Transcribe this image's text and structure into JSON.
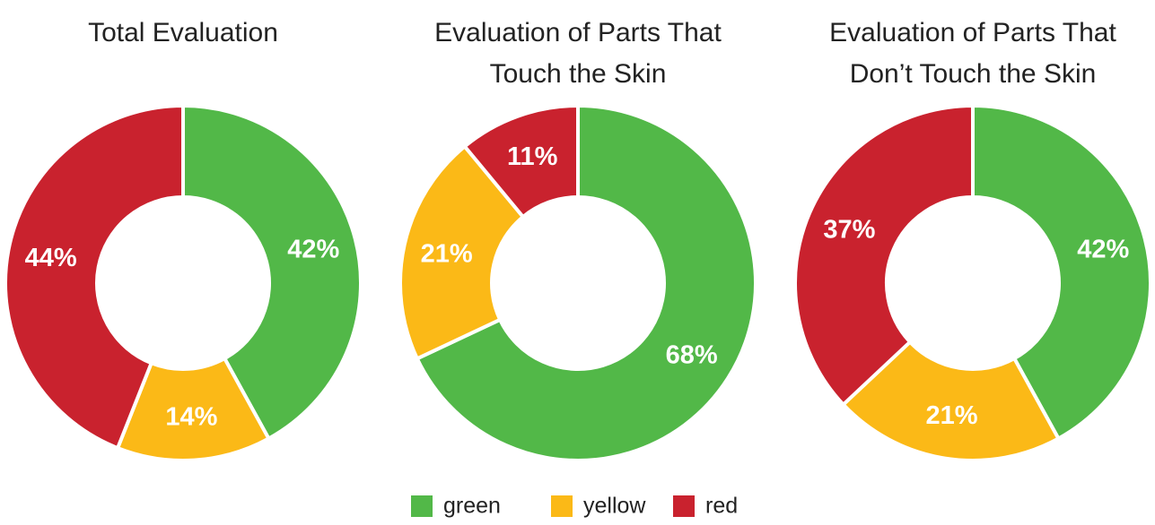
{
  "colors": {
    "green": "#52b848",
    "yellow": "#fbb917",
    "red": "#c9222e"
  },
  "chart_data": [
    {
      "type": "pie",
      "title": [
        "Total Evaluation"
      ],
      "slices": [
        {
          "category": "green",
          "value": 42,
          "label": "42%"
        },
        {
          "category": "yellow",
          "value": 14,
          "label": "14%"
        },
        {
          "category": "red",
          "value": 44,
          "label": "44%"
        }
      ]
    },
    {
      "type": "pie",
      "title": [
        "Evaluation of Parts That",
        "Touch the Skin"
      ],
      "slices": [
        {
          "category": "green",
          "value": 68,
          "label": "68%"
        },
        {
          "category": "yellow",
          "value": 21,
          "label": "21%"
        },
        {
          "category": "red",
          "value": 11,
          "label": "11%"
        }
      ]
    },
    {
      "type": "pie",
      "title": [
        "Evaluation of Parts That",
        "Don’t Touch the Skin"
      ],
      "slices": [
        {
          "category": "green",
          "value": 42,
          "label": "42%"
        },
        {
          "category": "yellow",
          "value": 21,
          "label": "21%"
        },
        {
          "category": "red",
          "value": 37,
          "label": "37%"
        }
      ]
    }
  ],
  "legend": {
    "placement": "bottom-center",
    "items": [
      {
        "key": "green",
        "label": "green"
      },
      {
        "key": "yellow",
        "label": "yellow"
      },
      {
        "key": "red",
        "label": "red"
      }
    ]
  }
}
